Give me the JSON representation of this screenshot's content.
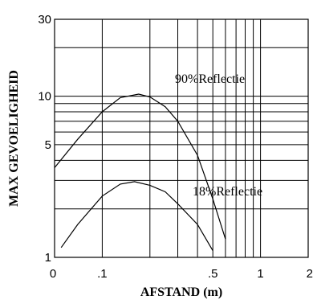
{
  "chart_data": {
    "type": "line",
    "xlabel": "AFSTAND (m)",
    "ylabel": "MAX GEVOELIGHEID",
    "x_scale": "log",
    "y_scale": "log",
    "xlim": [
      0.05,
      2
    ],
    "ylim": [
      1,
      30
    ],
    "grid": true,
    "x_tick_labels": [
      {
        "value": 0.05,
        "label": "0"
      },
      {
        "value": 0.1,
        "label": ".1"
      },
      {
        "value": 0.5,
        "label": ".5"
      },
      {
        "value": 1,
        "label": "1"
      },
      {
        "value": 2,
        "label": "2"
      }
    ],
    "y_tick_labels": [
      {
        "value": 1,
        "label": "1"
      },
      {
        "value": 5,
        "label": "5"
      },
      {
        "value": 10,
        "label": "10"
      },
      {
        "value": 30,
        "label": "30"
      }
    ],
    "x_gridlines": [
      0.1,
      0.2,
      0.3,
      0.4,
      0.5,
      0.6,
      0.7,
      0.8,
      0.9,
      1
    ],
    "y_gridlines": [
      1,
      2,
      3,
      4,
      5,
      6,
      7,
      8,
      9,
      10,
      20
    ],
    "series": [
      {
        "annotation": "90%Reflectie",
        "x": [
          0.05,
          0.07,
          0.1,
          0.13,
          0.17,
          0.2,
          0.25,
          0.3,
          0.4,
          0.5,
          0.6
        ],
        "y": [
          3.6,
          5.4,
          8.0,
          9.8,
          10.3,
          9.9,
          8.6,
          7.0,
          4.3,
          2.3,
          1.3
        ]
      },
      {
        "annotation": "18%Reflectie",
        "x": [
          0.055,
          0.07,
          0.1,
          0.13,
          0.16,
          0.2,
          0.25,
          0.3,
          0.4,
          0.5
        ],
        "y": [
          1.15,
          1.6,
          2.4,
          2.85,
          2.95,
          2.8,
          2.55,
          2.15,
          1.6,
          1.1
        ]
      }
    ],
    "annotations": [
      "90%Reflectie",
      "18%Reflectie"
    ]
  }
}
